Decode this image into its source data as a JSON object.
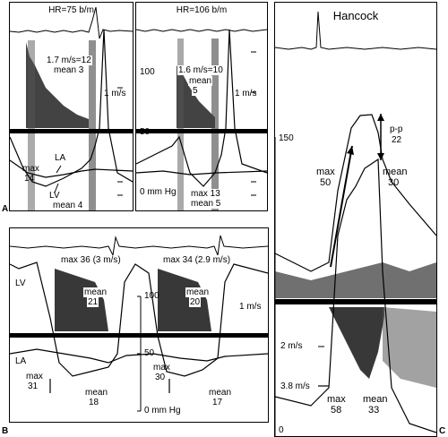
{
  "panels": {
    "A": {
      "letter": "A",
      "left": {
        "hr": "HR=75 b/m",
        "velocity": "1.7 m/s=12",
        "mean_top": "mean 3",
        "scale": "1 m/s",
        "la": "LA",
        "max": "max",
        "max_val": "14",
        "lv": "LV",
        "mean_bottom": "mean 4"
      },
      "right": {
        "hr": "HR=106 b/m",
        "scale_top": "100",
        "velocity": "1.6 m/s=10",
        "mean_label": "mean",
        "mean_val": "5",
        "scale": "1 m/s",
        "scale_mid": "50",
        "zero": "0 mm Hg",
        "max": "max 13",
        "mean_bottom": "mean 5"
      }
    },
    "B": {
      "letter": "B",
      "lv": "LV",
      "la": "LA",
      "max1": "max 36 (3 m/s)",
      "mean1": "mean",
      "mean1_val": "21",
      "max2": "max 34 (2.9 m/s)",
      "mean2": "mean",
      "mean2_val": "20",
      "scale_top": "100",
      "scale_mid": "50",
      "scale_ms": "1 m/s",
      "zero": "0 mm Hg",
      "max3": "max",
      "max3_val": "31",
      "mean3": "mean",
      "mean3_val": "18",
      "max4": "max",
      "max4_val": "30",
      "mean4": "mean",
      "mean4_val": "17"
    },
    "C": {
      "letter": "C",
      "title": "Hancock",
      "scale_top": "150",
      "pp": "p-p",
      "pp_val": "22",
      "max": "max",
      "max_val": "50",
      "mean": "mean",
      "mean_val": "30",
      "vel2": "2 m/s",
      "vel38": "3.8 m/s",
      "max2": "max",
      "max2_val": "58",
      "mean2": "mean",
      "mean2_val": "33",
      "zero": "0"
    }
  }
}
